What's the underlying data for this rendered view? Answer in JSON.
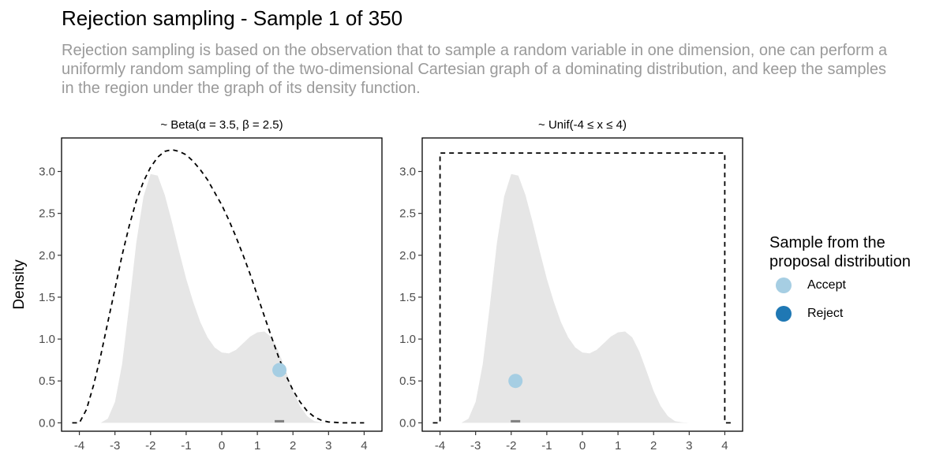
{
  "title": "Rejection sampling - Sample 1 of 350",
  "subtitle": "Rejection sampling is based on the observation that to sample a random variable in one dimension, one can perform a uniformly random sampling of the two-dimensional Cartesian graph of a dominating distribution, and keep the samples in the region under the graph of its density function.",
  "legend": {
    "title": "Sample from the proposal distribution",
    "items": [
      {
        "label": "Accept",
        "color": "#a6cee3"
      },
      {
        "label": "Reject",
        "color": "#1f78b4"
      }
    ]
  },
  "colors": {
    "target_fill": "#e6e6e6",
    "rug": "#7f7f7f",
    "frame": "#000000"
  },
  "chart_data": [
    {
      "type": "area",
      "title": "~ Beta(α = 3.5, β = 2.5)",
      "xlabel": "",
      "ylabel": "Density",
      "xlim": [
        -4.5,
        4.5
      ],
      "ylim": [
        -0.1,
        3.4
      ],
      "xticks": [
        -4,
        -3,
        -2,
        -1,
        0,
        1,
        2,
        3,
        4
      ],
      "yticks": [
        0.0,
        0.5,
        1.0,
        1.5,
        2.0,
        2.5,
        3.0
      ],
      "ytick_labels": [
        "0.0",
        "0.5",
        "1.0",
        "1.5",
        "2.0",
        "2.5",
        "3.0"
      ],
      "grid": false,
      "target_density": {
        "x": [
          -3.4,
          -3.2,
          -3.0,
          -2.8,
          -2.6,
          -2.4,
          -2.2,
          -2.0,
          -1.8,
          -1.6,
          -1.4,
          -1.2,
          -1.0,
          -0.8,
          -0.6,
          -0.4,
          -0.2,
          0.0,
          0.2,
          0.4,
          0.6,
          0.8,
          1.0,
          1.2,
          1.4,
          1.6,
          1.8,
          2.0,
          2.2,
          2.4,
          2.6,
          2.8,
          3.0,
          3.2
        ],
        "y": [
          0.0,
          0.05,
          0.25,
          0.7,
          1.4,
          2.15,
          2.7,
          2.97,
          2.95,
          2.72,
          2.4,
          2.05,
          1.72,
          1.44,
          1.2,
          1.02,
          0.9,
          0.84,
          0.83,
          0.87,
          0.95,
          1.03,
          1.08,
          1.09,
          1.02,
          0.85,
          0.62,
          0.38,
          0.2,
          0.08,
          0.02,
          0.005,
          0.0,
          0.0
        ]
      },
      "proposal": {
        "name": "Beta(α = 3.5, β = 2.5) envelope",
        "x": [
          -4.2,
          -4.0,
          -3.8,
          -3.6,
          -3.4,
          -3.2,
          -3.0,
          -2.8,
          -2.6,
          -2.4,
          -2.2,
          -2.0,
          -1.8,
          -1.6,
          -1.4,
          -1.2,
          -1.0,
          -0.8,
          -0.6,
          -0.4,
          -0.2,
          0.0,
          0.2,
          0.4,
          0.6,
          0.8,
          1.0,
          1.2,
          1.4,
          1.6,
          1.8,
          2.0,
          2.2,
          2.4,
          2.6,
          2.8,
          3.0,
          3.2,
          3.4,
          3.6,
          3.8,
          4.0
        ],
        "y": [
          0.0,
          0.0,
          0.16,
          0.45,
          0.8,
          1.2,
          1.6,
          2.0,
          2.35,
          2.65,
          2.88,
          3.05,
          3.17,
          3.24,
          3.26,
          3.24,
          3.2,
          3.12,
          3.02,
          2.9,
          2.75,
          2.6,
          2.42,
          2.22,
          2.0,
          1.77,
          1.52,
          1.27,
          1.02,
          0.78,
          0.57,
          0.39,
          0.25,
          0.14,
          0.07,
          0.03,
          0.01,
          0.005,
          0.0,
          0.0,
          0.0,
          0.0
        ]
      },
      "samples": [
        {
          "x": 1.62,
          "y": 0.63,
          "status": "Accept"
        }
      ]
    },
    {
      "type": "area",
      "title": "~ Unif(-4 ≤ x ≤ 4)",
      "xlabel": "",
      "ylabel": "",
      "xlim": [
        -4.5,
        4.5
      ],
      "ylim": [
        -0.1,
        3.4
      ],
      "xticks": [
        -4,
        -3,
        -2,
        -1,
        0,
        1,
        2,
        3,
        4
      ],
      "yticks": [
        0.0,
        0.5,
        1.0,
        1.5,
        2.0,
        2.5,
        3.0
      ],
      "ytick_labels": [
        "0.0",
        "0.5",
        "1.0",
        "1.5",
        "2.0",
        "2.5",
        "3.0"
      ],
      "grid": false,
      "target_density": {
        "x": [
          -3.4,
          -3.2,
          -3.0,
          -2.8,
          -2.6,
          -2.4,
          -2.2,
          -2.0,
          -1.8,
          -1.6,
          -1.4,
          -1.2,
          -1.0,
          -0.8,
          -0.6,
          -0.4,
          -0.2,
          0.0,
          0.2,
          0.4,
          0.6,
          0.8,
          1.0,
          1.2,
          1.4,
          1.6,
          1.8,
          2.0,
          2.2,
          2.4,
          2.6,
          2.8,
          3.0,
          3.2
        ],
        "y": [
          0.0,
          0.05,
          0.25,
          0.7,
          1.4,
          2.15,
          2.7,
          2.97,
          2.95,
          2.72,
          2.4,
          2.05,
          1.72,
          1.44,
          1.2,
          1.02,
          0.9,
          0.84,
          0.83,
          0.87,
          0.95,
          1.03,
          1.08,
          1.09,
          1.02,
          0.85,
          0.62,
          0.38,
          0.2,
          0.08,
          0.02,
          0.005,
          0.0,
          0.0
        ]
      },
      "proposal": {
        "name": "Unif(-4 ≤ x ≤ 4) envelope",
        "x": [
          -4.2,
          -4.0,
          -4.0,
          4.0,
          4.0,
          4.2
        ],
        "y": [
          0.0,
          0.0,
          3.22,
          3.22,
          0.0,
          0.0
        ]
      },
      "samples": [
        {
          "x": -1.88,
          "y": 0.5,
          "status": "Accept"
        }
      ]
    }
  ]
}
